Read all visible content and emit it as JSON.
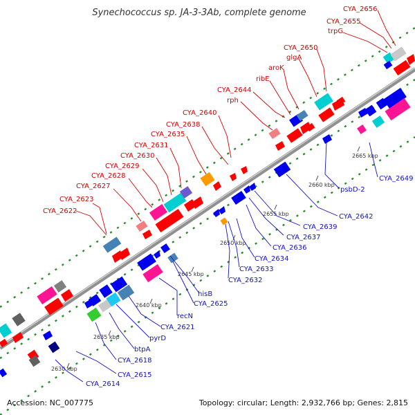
{
  "title": "Synechococcus sp. JA-3-3Ab, complete genome",
  "footer": {
    "accession": "Accession: NC_007775",
    "summary": "Topology: circular; Length: 2,932,766 bp; Genes: 2,815"
  },
  "ticks": [
    "2630 kbp",
    "2635 kbp",
    "2640 kbp",
    "2645 kbp",
    "2650 kbp",
    "2655 kbp",
    "2660 kbp",
    "2665 kbp"
  ],
  "genes_top": [
    "CYA_2622",
    "CYA_2623",
    "CYA_2627",
    "CYA_2628",
    "CYA_2629",
    "CYA_2630",
    "CYA_2631",
    "CYA_2635",
    "CYA_2638",
    "CYA_2640",
    "rph",
    "CYA_2644",
    "ribE",
    "aroK",
    "glgA",
    "CYA_2650",
    "trpG",
    "CYA_2655",
    "CYA_2656"
  ],
  "genes_bottom": [
    "CYA_2614",
    "CYA_2615",
    "CYA_2618",
    "btpA",
    "pyrD",
    "CYA_2621",
    "recN",
    "CYA_2625",
    "hisB",
    "CYA_2632",
    "CYA_2633",
    "CYA_2634",
    "CYA_2636",
    "CYA_2637",
    "CYA_2639",
    "CYA_2642",
    "psbD-2",
    "CYA_2649"
  ],
  "colors": {
    "red": "#ff0000",
    "blue": "#0000ee",
    "steel": "#4682b4",
    "magenta": "#ff1493",
    "cyan": "#00ced1",
    "light_cyan": "#1ec8f0",
    "pink": "#f08080",
    "gray": "#808080",
    "light_gray": "#c8c8c8",
    "orange": "#ff9900",
    "green": "#33cc33",
    "purple": "#6a5acd",
    "navy": "#000080",
    "label_red": "#d40000",
    "label_blue": "#1010c8",
    "track_green": "#2a8a2a"
  }
}
